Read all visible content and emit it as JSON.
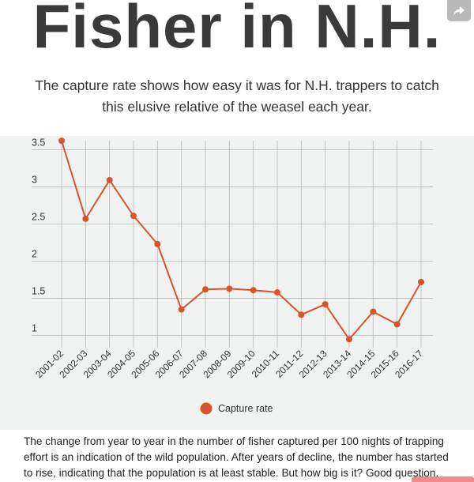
{
  "header": {
    "title": "Fisher in N.H.",
    "subtitle": "The capture rate shows how easy it was for N.H. trappers to catch this elusive relative of the weasel each year."
  },
  "share_icon": "share-icon",
  "colors": {
    "line": "#d8542a",
    "panel": "#f0f3f1",
    "grid": "#b4b8b6",
    "title": "#3a3a3a"
  },
  "chart_data": {
    "type": "line",
    "title": "",
    "xlabel": "",
    "ylabel": "",
    "categories": [
      "2001-02",
      "2002-03",
      "2003-04",
      "2004-05",
      "2005-06",
      "2006-07",
      "2007-08",
      "2008-09",
      "2009-10",
      "2010-11",
      "2011-12",
      "2012-13",
      "2013-14",
      "2014-15",
      "2015-16",
      "2016-17"
    ],
    "y_ticks": [
      1,
      1.5,
      2,
      2.5,
      3,
      3.5
    ],
    "y_tick_labels": [
      "1",
      "1.5",
      "2",
      "2.5",
      "3",
      "3.5"
    ],
    "ylim": [
      0.9,
      3.6
    ],
    "grid": true,
    "legend_position": "bottom-center",
    "series": [
      {
        "name": "Capture rate",
        "values": [
          3.62,
          2.57,
          3.09,
          2.61,
          2.23,
          1.35,
          1.62,
          1.63,
          1.61,
          1.58,
          1.28,
          1.42,
          0.95,
          1.32,
          1.15,
          1.72
        ]
      }
    ]
  },
  "footnote": "The change from year to year in the number of fisher captured per 100 nights of trapping effort is an indication of the wild population. After years of decline, the number has started to rise, indicating that the population is at least stable. But how big is it? Good question."
}
